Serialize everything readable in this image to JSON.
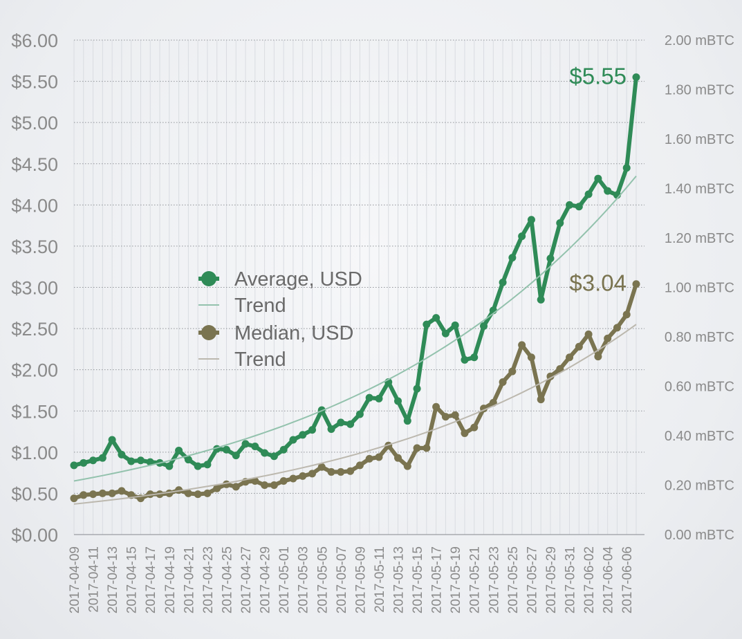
{
  "chart_data": {
    "type": "line",
    "title": "",
    "xlabel": "",
    "ylabel_left": "USD",
    "ylabel_right": "mBTC",
    "ylim": [
      0,
      6
    ],
    "ylim_right": [
      0,
      2
    ],
    "y_ticks_left": [
      "$0.00",
      "$0.50",
      "$1.00",
      "$1.50",
      "$2.00",
      "$2.50",
      "$3.00",
      "$3.50",
      "$4.00",
      "$4.50",
      "$5.00",
      "$5.50",
      "$6.00"
    ],
    "y_ticks_right": [
      "0.00 mBTC",
      "0.20 mBTC",
      "0.40 mBTC",
      "0.60 mBTC",
      "0.80 mBTC",
      "1.00 mBTC",
      "1.20 mBTC",
      "1.40 mBTC",
      "1.60 mBTC",
      "1.80 mBTC",
      "2.00 mBTC"
    ],
    "x": [
      "2017-04-09",
      "2017-04-10",
      "2017-04-11",
      "2017-04-12",
      "2017-04-13",
      "2017-04-14",
      "2017-04-15",
      "2017-04-16",
      "2017-04-17",
      "2017-04-18",
      "2017-04-19",
      "2017-04-20",
      "2017-04-21",
      "2017-04-22",
      "2017-04-23",
      "2017-04-24",
      "2017-04-25",
      "2017-04-26",
      "2017-04-27",
      "2017-04-28",
      "2017-04-29",
      "2017-04-30",
      "2017-05-01",
      "2017-05-02",
      "2017-05-03",
      "2017-05-04",
      "2017-05-05",
      "2017-05-06",
      "2017-05-07",
      "2017-05-08",
      "2017-05-09",
      "2017-05-10",
      "2017-05-11",
      "2017-05-12",
      "2017-05-13",
      "2017-05-14",
      "2017-05-15",
      "2017-05-16",
      "2017-05-17",
      "2017-05-18",
      "2017-05-19",
      "2017-05-20",
      "2017-05-21",
      "2017-05-22",
      "2017-05-23",
      "2017-05-24",
      "2017-05-25",
      "2017-05-26",
      "2017-05-27",
      "2017-05-28",
      "2017-05-29",
      "2017-05-30",
      "2017-05-31",
      "2017-06-01",
      "2017-06-02",
      "2017-06-03",
      "2017-06-04",
      "2017-06-05",
      "2017-06-06",
      "2017-06-07"
    ],
    "x_tick_every": 2,
    "grid": true,
    "legend_placement": "center-left",
    "series": [
      {
        "name": "Average, USD",
        "color": "#2f8b57",
        "end_label": "$5.55",
        "values": [
          0.84,
          0.87,
          0.9,
          0.93,
          1.15,
          0.97,
          0.89,
          0.9,
          0.88,
          0.87,
          0.83,
          1.02,
          0.91,
          0.83,
          0.85,
          1.04,
          1.03,
          0.96,
          1.1,
          1.07,
          0.99,
          0.95,
          1.03,
          1.15,
          1.21,
          1.27,
          1.51,
          1.28,
          1.36,
          1.34,
          1.46,
          1.66,
          1.65,
          1.85,
          1.62,
          1.38,
          1.77,
          2.55,
          2.63,
          2.44,
          2.54,
          2.12,
          2.15,
          2.53,
          2.72,
          3.06,
          3.36,
          3.62,
          3.82,
          2.85,
          3.35,
          3.78,
          4.0,
          3.98,
          4.13,
          4.32,
          4.17,
          4.12,
          4.45,
          5.55
        ]
      },
      {
        "name": "Trend",
        "color": "#93c2ad",
        "trend_of": "Average, USD",
        "start": 0.65,
        "end": 4.35
      },
      {
        "name": "Median, USD",
        "color": "#7a7450",
        "end_label": "$3.04",
        "values": [
          0.44,
          0.48,
          0.49,
          0.5,
          0.5,
          0.53,
          0.48,
          0.44,
          0.49,
          0.49,
          0.5,
          0.54,
          0.5,
          0.49,
          0.5,
          0.56,
          0.61,
          0.58,
          0.64,
          0.65,
          0.6,
          0.6,
          0.65,
          0.68,
          0.71,
          0.74,
          0.82,
          0.76,
          0.76,
          0.77,
          0.84,
          0.92,
          0.94,
          1.08,
          0.93,
          0.83,
          1.05,
          1.05,
          1.55,
          1.43,
          1.45,
          1.23,
          1.3,
          1.53,
          1.6,
          1.85,
          1.98,
          2.3,
          2.15,
          1.64,
          1.92,
          2.01,
          2.15,
          2.28,
          2.43,
          2.16,
          2.38,
          2.51,
          2.67,
          3.04
        ]
      },
      {
        "name": "Trend",
        "color": "#bcb8ae",
        "trend_of": "Median, USD",
        "start": 0.37,
        "end": 2.55
      }
    ]
  }
}
